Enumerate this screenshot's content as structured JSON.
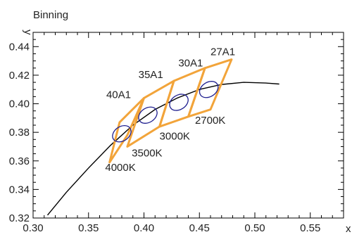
{
  "chart_data": {
    "type": "scatter",
    "title": "Binning",
    "xlabel": "x",
    "ylabel": "y",
    "xlim": [
      0.3,
      0.58
    ],
    "ylim": [
      0.32,
      0.45
    ],
    "xticks": [
      0.3,
      0.35,
      0.4,
      0.45,
      0.5,
      0.55
    ],
    "yticks": [
      0.32,
      0.34,
      0.36,
      0.38,
      0.4,
      0.42,
      0.44
    ],
    "xtick_labels": [
      "0.30",
      "0.35",
      "0.40",
      "0.45",
      "0.50",
      "0.55"
    ],
    "ytick_labels": [
      "0.32",
      "0.34",
      "0.36",
      "0.38",
      "0.40",
      "0.42",
      "0.44"
    ],
    "grid": false,
    "colors": {
      "bins": "#f2a43a",
      "ellipses": "#1f1f8f",
      "curve": "#000000"
    },
    "planckian_locus": {
      "x": [
        0.313,
        0.33,
        0.35,
        0.37,
        0.39,
        0.41,
        0.43,
        0.45,
        0.47,
        0.49,
        0.51,
        0.522
      ],
      "y": [
        0.322,
        0.338,
        0.355,
        0.371,
        0.385,
        0.396,
        0.404,
        0.41,
        0.4135,
        0.415,
        0.4145,
        0.4138
      ]
    },
    "bins": [
      {
        "label": "40A1",
        "polygon": [
          [
            0.369,
            0.359
          ],
          [
            0.385,
            0.378
          ],
          [
            0.4,
            0.404
          ],
          [
            0.378,
            0.387
          ]
        ]
      },
      {
        "label": "35A1",
        "polygon": [
          [
            0.385,
            0.37
          ],
          [
            0.414,
            0.384
          ],
          [
            0.427,
            0.416
          ],
          [
            0.4,
            0.404
          ]
        ]
      },
      {
        "label": "30A1",
        "polygon": [
          [
            0.414,
            0.384
          ],
          [
            0.44,
            0.391
          ],
          [
            0.455,
            0.425
          ],
          [
            0.427,
            0.416
          ]
        ]
      },
      {
        "label": "27A1",
        "polygon": [
          [
            0.44,
            0.391
          ],
          [
            0.46,
            0.396
          ],
          [
            0.479,
            0.431
          ],
          [
            0.455,
            0.425
          ]
        ]
      }
    ],
    "ellipses": [
      {
        "cx": 0.38,
        "cy": 0.379,
        "rx": 0.0065,
        "ry": 0.009,
        "angle": 57
      },
      {
        "cx": 0.4035,
        "cy": 0.392,
        "rx": 0.0065,
        "ry": 0.009,
        "angle": 57
      },
      {
        "cx": 0.4315,
        "cy": 0.401,
        "rx": 0.0065,
        "ry": 0.009,
        "angle": 57
      },
      {
        "cx": 0.4585,
        "cy": 0.41,
        "rx": 0.0065,
        "ry": 0.009,
        "angle": 57
      }
    ],
    "annotations": [
      {
        "text": "40A1",
        "x": 0.366,
        "y": 0.404
      },
      {
        "text": "35A1",
        "x": 0.395,
        "y": 0.418
      },
      {
        "text": "30A1",
        "x": 0.431,
        "y": 0.426
      },
      {
        "text": "27A1",
        "x": 0.46,
        "y": 0.434
      },
      {
        "text": "4000K",
        "x": 0.365,
        "y": 0.353
      },
      {
        "text": "3500K",
        "x": 0.389,
        "y": 0.363
      },
      {
        "text": "3000K",
        "x": 0.414,
        "y": 0.375
      },
      {
        "text": "2700K",
        "x": 0.446,
        "y": 0.386
      }
    ]
  }
}
